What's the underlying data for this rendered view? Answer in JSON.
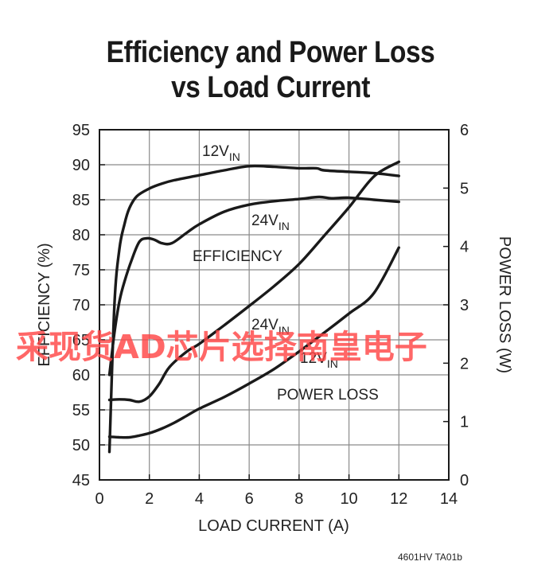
{
  "title": {
    "line1": "Efficiency and Power Loss",
    "line2": "vs Load Current"
  },
  "figure_id": "4601HV TA01b",
  "watermark": "采现货AD芯片选择南皇电子",
  "chart_data": {
    "type": "line",
    "title": "Efficiency and Power Loss vs Load Current",
    "xlabel": "LOAD CURRENT (A)",
    "ylabel_left": "EFFICIENCY (%)",
    "ylabel_right": "POWER LOSS (W)",
    "xlim": [
      0,
      14
    ],
    "ylim_left": [
      45,
      95
    ],
    "ylim_right": [
      0,
      6
    ],
    "x_ticks": [
      "0",
      "2",
      "4",
      "6",
      "8",
      "10",
      "12",
      "14"
    ],
    "y_ticks_left": [
      "45",
      "50",
      "55",
      "60",
      "65",
      "70",
      "75",
      "80",
      "85",
      "90",
      "95"
    ],
    "y_ticks_right": [
      "0",
      "1",
      "2",
      "3",
      "4",
      "5",
      "6"
    ],
    "grid": true,
    "annotations": {
      "efficiency": "EFFICIENCY",
      "power_loss": "POWER LOSS",
      "v12_main": "12V",
      "v12_sub": "IN",
      "v24_main": "24V",
      "v24_sub": "IN"
    },
    "series": [
      {
        "name": "12VIN",
        "group": "efficiency",
        "axis": "left",
        "x": [
          0.4,
          0.6,
          0.8,
          1.0,
          1.2,
          1.5,
          2.0,
          2.5,
          3.0,
          4.0,
          5.0,
          6.0,
          7.0,
          8.0,
          8.7,
          9.0,
          10.0,
          11.0,
          12.0
        ],
        "y": [
          49,
          70,
          78,
          81.5,
          83.8,
          85.5,
          86.6,
          87.3,
          87.8,
          88.5,
          89.2,
          89.8,
          89.7,
          89.5,
          89.5,
          89.2,
          89.0,
          88.8,
          88.4
        ]
      },
      {
        "name": "24VIN",
        "group": "efficiency",
        "axis": "left",
        "x": [
          0.4,
          0.6,
          0.8,
          1.0,
          1.3,
          1.6,
          1.9,
          2.2,
          2.5,
          2.9,
          3.5,
          4.0,
          5.0,
          6.0,
          7.0,
          8.0,
          8.8,
          9.3,
          10.0,
          11.0,
          12.0
        ],
        "y": [
          60,
          66,
          70.5,
          73.3,
          76.5,
          79,
          79.5,
          79.3,
          78.8,
          78.8,
          80.3,
          81.5,
          83.3,
          84.3,
          84.8,
          85.1,
          85.4,
          85.2,
          85.3,
          85.0,
          84.7
        ]
      },
      {
        "name": "24VIN",
        "group": "power_loss",
        "axis": "right",
        "x": [
          0.4,
          0.8,
          1.2,
          1.6,
          2.0,
          2.4,
          2.8,
          3.5,
          4.0,
          5.0,
          6.0,
          7.0,
          8.0,
          9.0,
          10.0,
          11.0,
          12.0
        ],
        "y": [
          1.37,
          1.38,
          1.37,
          1.34,
          1.43,
          1.65,
          1.93,
          2.2,
          2.33,
          2.65,
          2.98,
          3.32,
          3.7,
          4.18,
          4.67,
          5.2,
          5.45
        ]
      },
      {
        "name": "12VIN",
        "group": "power_loss",
        "axis": "right",
        "x": [
          0.4,
          0.8,
          1.2,
          1.6,
          2.0,
          2.5,
          3.0,
          3.5,
          4.0,
          5.0,
          6.0,
          7.0,
          8.0,
          9.0,
          10.0,
          11.0,
          12.0
        ],
        "y": [
          0.74,
          0.73,
          0.73,
          0.76,
          0.8,
          0.88,
          0.98,
          1.1,
          1.22,
          1.42,
          1.65,
          1.9,
          2.2,
          2.52,
          2.85,
          3.2,
          3.98
        ]
      }
    ]
  }
}
